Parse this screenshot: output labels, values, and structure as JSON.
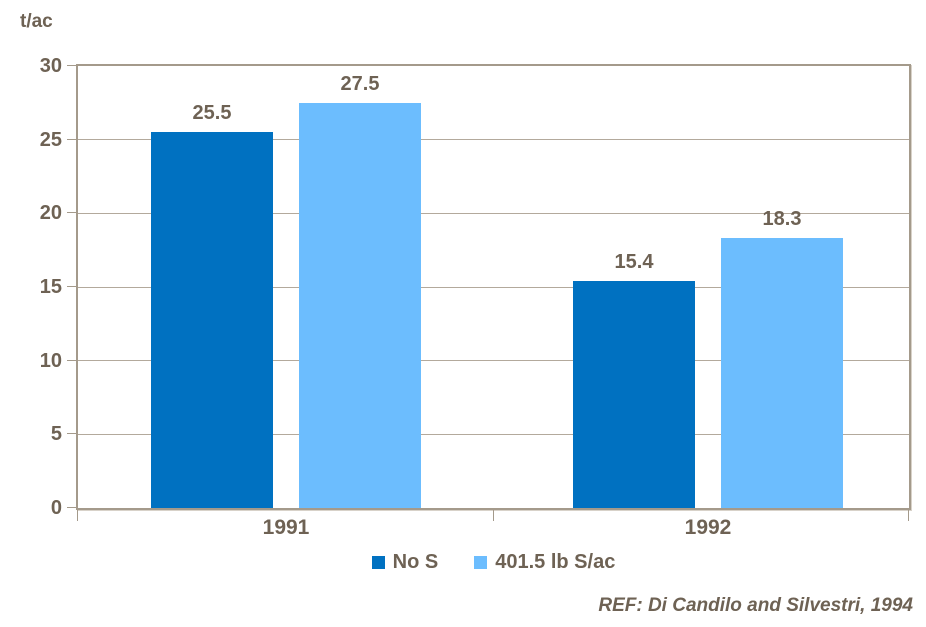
{
  "chart_data": {
    "type": "bar",
    "title": "",
    "ylabel": "t/ac",
    "xlabel": "",
    "categories": [
      "1991",
      "1992"
    ],
    "series": [
      {
        "name": "No S",
        "color": "#0071C1",
        "values": [
          25.5,
          15.4
        ]
      },
      {
        "name": "401.5 lb S/ac",
        "color": "#6CBDFE",
        "values": [
          27.5,
          18.3
        ]
      }
    ],
    "ylim": [
      0,
      30
    ],
    "yticks": [
      0,
      5,
      10,
      15,
      20,
      25,
      30
    ],
    "grid": true,
    "legend_position": "bottom",
    "bar_value_labels_shown": true
  },
  "footer": {
    "ref_label": "REF: Di Candilo and Silvestri, 1994"
  },
  "colors": {
    "bar_dark_blue": "#0071C1",
    "bar_light_blue": "#6CBDFE",
    "text_brown": "#6e6254",
    "axis_border": "#a49a8b",
    "gridline": "#b3a99c",
    "background": "#ffffff"
  }
}
